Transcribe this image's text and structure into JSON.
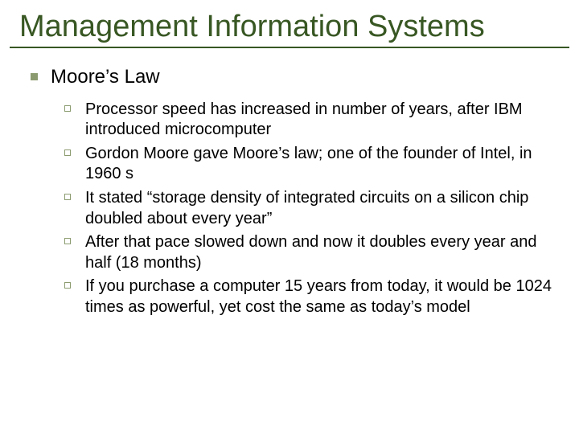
{
  "colors": {
    "title": "#385723",
    "rule": "#385723",
    "bullet1": "#8b9b6f",
    "bullet2": "#8b9b6f",
    "text": "#000000"
  },
  "title": "Management Information Systems",
  "section": {
    "heading": "Moore’s Law",
    "items": [
      "Processor speed has increased in number of years, after IBM introduced microcomputer",
      "Gordon Moore gave Moore’s law; one of the founder of Intel, in 1960 s",
      "It stated “storage density of integrated circuits on a silicon chip doubled about every year”",
      "After that pace slowed down and now it doubles every year and half (18 months)",
      "If you purchase a computer 15 years from today, it would be 1024 times as powerful, yet cost the same as today’s model"
    ]
  }
}
